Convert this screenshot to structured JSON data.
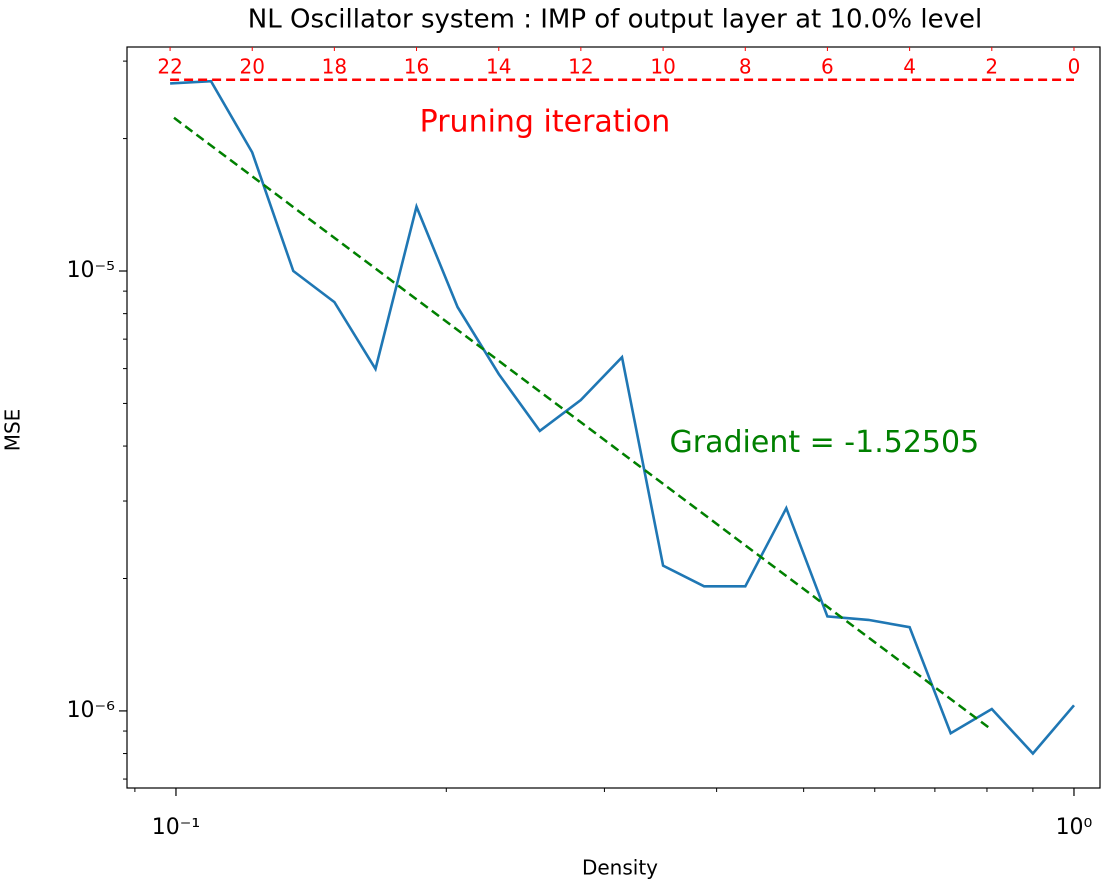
{
  "chart_data": {
    "type": "line",
    "title": "NL Oscillator system : IMP of output layer at 10.0% level",
    "xlabel": "Density",
    "ylabel": "MSE",
    "xscale": "log",
    "yscale": "log",
    "xlim": [
      0.0882,
      1.069
    ],
    "ylim": [
      6.68e-07,
      3.23e-05
    ],
    "xticks": [
      {
        "value": 0.1,
        "label": "10⁻¹"
      },
      {
        "value": 1,
        "label": "10⁰"
      }
    ],
    "xminorticks": [
      0.09,
      0.2,
      0.3,
      0.4,
      0.5,
      0.6,
      0.7,
      0.8,
      0.9
    ],
    "yticks": [
      {
        "value": 1e-06,
        "label": "10⁻⁶"
      },
      {
        "value": 1e-05,
        "label": "10⁻⁵"
      }
    ],
    "yminorticks": [
      7e-07,
      8e-07,
      9e-07,
      2e-06,
      3e-06,
      4e-06,
      5e-06,
      6e-06,
      7e-06,
      8e-06,
      9e-06,
      2e-05,
      3e-05
    ],
    "x2ticks": [
      {
        "value": 0.0985,
        "label": "22"
      },
      {
        "value": 0.1216,
        "label": "20"
      },
      {
        "value": 0.1501,
        "label": "18"
      },
      {
        "value": 0.1853,
        "label": "16"
      },
      {
        "value": 0.2288,
        "label": "14"
      },
      {
        "value": 0.2824,
        "label": "12"
      },
      {
        "value": 0.3487,
        "label": "10"
      },
      {
        "value": 0.4305,
        "label": "8"
      },
      {
        "value": 0.5314,
        "label": "6"
      },
      {
        "value": 0.6561,
        "label": "4"
      },
      {
        "value": 0.81,
        "label": "2"
      },
      {
        "value": 1,
        "label": "0"
      }
    ],
    "x2color": "#ff0000",
    "series": [
      {
        "color": "#1f77b4",
        "dash": false,
        "x": [
          0.0985,
          0.1094,
          0.1216,
          0.1351,
          0.1501,
          0.1668,
          0.1853,
          0.2059,
          0.2288,
          0.2542,
          0.2824,
          0.3138,
          0.3487,
          0.3874,
          0.4305,
          0.4783,
          0.5314,
          0.5905,
          0.6561,
          0.729,
          0.81,
          0.9,
          1
        ],
        "values": [
          2.67e-05,
          2.7e-05,
          1.86e-05,
          1e-05,
          8.5e-06,
          5.99e-06,
          1.4e-05,
          8.28e-06,
          5.83e-06,
          4.33e-06,
          5.09e-06,
          6.37e-06,
          2.14e-06,
          1.92e-06,
          1.92e-06,
          2.89e-06,
          1.64e-06,
          1.61e-06,
          1.55e-06,
          8.9e-07,
          1.01e-06,
          8e-07,
          1.03e-06
        ]
      },
      {
        "color": "#008000",
        "dash": true,
        "x": [
          0.0995,
          0.81
        ],
        "values": [
          2.23e-05,
          9.06e-07
        ]
      },
      {
        "color": "#ff0000",
        "dash": true,
        "x": [
          0.0985,
          1
        ],
        "values": [
          2.72e-05,
          2.72e-05
        ]
      }
    ],
    "annotations": [
      {
        "text": "Gradient = -1.52505",
        "color": "#008000",
        "x": 0.3545,
        "y": 4.05e-06
      },
      {
        "text": "Pruning iteration",
        "color": "#ff0000",
        "x": 0.1868,
        "y": 2.17e-05
      }
    ]
  }
}
